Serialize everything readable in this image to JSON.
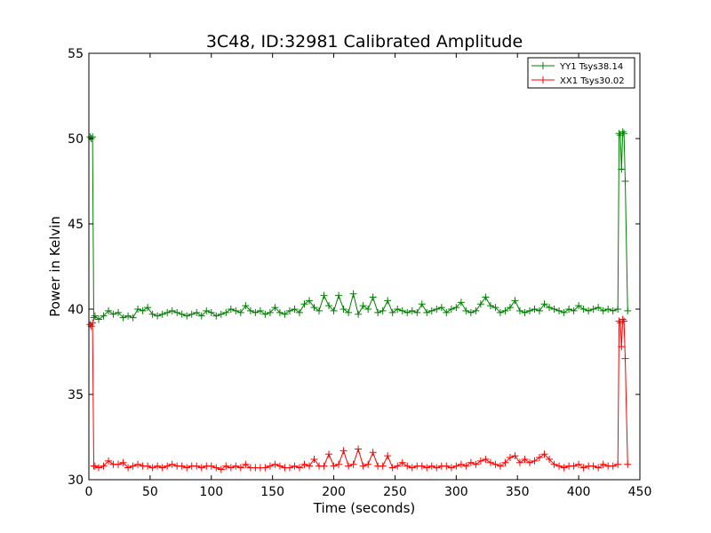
{
  "chart_data": {
    "type": "line",
    "title": "3C48, ID:32981 Calibrated Amplitude",
    "xlabel": "Time (seconds)",
    "ylabel": "Power in Kelvin",
    "xlim": [
      0,
      450
    ],
    "ylim": [
      30,
      55
    ],
    "xticks": [
      0,
      50,
      100,
      150,
      200,
      250,
      300,
      350,
      400,
      450
    ],
    "yticks": [
      30,
      35,
      40,
      45,
      50,
      55
    ],
    "grid": false,
    "legend_position": "top-right",
    "marker": "+",
    "series": [
      {
        "name": "YY1 Tsys38.14",
        "color": "#008000",
        "x": [
          1,
          2,
          3,
          4,
          5,
          8,
          12,
          16,
          20,
          24,
          28,
          32,
          36,
          40,
          44,
          48,
          52,
          56,
          60,
          64,
          68,
          72,
          76,
          80,
          84,
          88,
          92,
          96,
          100,
          104,
          108,
          112,
          116,
          120,
          124,
          128,
          132,
          136,
          140,
          144,
          148,
          152,
          156,
          160,
          164,
          168,
          172,
          176,
          180,
          184,
          188,
          192,
          196,
          200,
          204,
          208,
          212,
          216,
          220,
          224,
          228,
          232,
          236,
          240,
          244,
          248,
          252,
          256,
          260,
          264,
          268,
          272,
          276,
          280,
          284,
          288,
          292,
          296,
          300,
          304,
          308,
          312,
          316,
          320,
          324,
          328,
          332,
          336,
          340,
          344,
          348,
          352,
          356,
          360,
          364,
          368,
          372,
          376,
          380,
          384,
          388,
          392,
          396,
          400,
          404,
          408,
          412,
          416,
          420,
          424,
          428,
          432,
          433,
          434,
          435,
          436,
          437,
          438,
          440
        ],
        "y": [
          50.1,
          50.0,
          50.1,
          39.5,
          39.6,
          39.4,
          39.6,
          39.9,
          39.7,
          39.8,
          39.5,
          39.6,
          39.5,
          40.0,
          39.9,
          40.1,
          39.7,
          39.6,
          39.7,
          39.8,
          39.9,
          39.8,
          39.7,
          39.6,
          39.7,
          39.8,
          39.6,
          39.9,
          39.8,
          39.6,
          39.7,
          39.8,
          40.0,
          39.9,
          39.8,
          40.2,
          39.9,
          39.8,
          39.9,
          39.7,
          39.8,
          40.1,
          39.8,
          39.7,
          39.9,
          40.0,
          39.8,
          40.3,
          40.5,
          40.1,
          39.9,
          40.8,
          40.2,
          39.9,
          40.8,
          40.0,
          39.8,
          40.9,
          39.7,
          40.2,
          40.0,
          40.7,
          39.8,
          39.9,
          40.5,
          39.8,
          40.0,
          39.9,
          39.8,
          39.9,
          39.8,
          40.3,
          39.8,
          39.9,
          40.0,
          40.1,
          39.8,
          40.0,
          40.1,
          40.4,
          39.9,
          39.8,
          39.9,
          40.3,
          40.7,
          40.2,
          40.1,
          39.8,
          39.9,
          40.1,
          40.5,
          39.9,
          39.8,
          39.9,
          40.0,
          39.9,
          40.3,
          40.1,
          40.0,
          39.9,
          39.8,
          40.0,
          39.9,
          40.2,
          40.0,
          39.9,
          40.0,
          40.1,
          39.9,
          40.0,
          39.9,
          40.0,
          50.3,
          50.2,
          48.2,
          50.4,
          50.3,
          47.5,
          39.9
        ]
      },
      {
        "name": "XX1 Tsys30.02",
        "color": "#ff0000",
        "x": [
          1,
          2,
          3,
          4,
          5,
          8,
          12,
          16,
          20,
          24,
          28,
          32,
          36,
          40,
          44,
          48,
          52,
          56,
          60,
          64,
          68,
          72,
          76,
          80,
          84,
          88,
          92,
          96,
          100,
          104,
          108,
          112,
          116,
          120,
          124,
          128,
          132,
          136,
          140,
          144,
          148,
          152,
          156,
          160,
          164,
          168,
          172,
          176,
          180,
          184,
          188,
          192,
          196,
          200,
          204,
          208,
          212,
          216,
          220,
          224,
          228,
          232,
          236,
          240,
          244,
          248,
          252,
          256,
          260,
          264,
          268,
          272,
          276,
          280,
          284,
          288,
          292,
          296,
          300,
          304,
          308,
          312,
          316,
          320,
          324,
          328,
          332,
          336,
          340,
          344,
          348,
          352,
          356,
          360,
          364,
          368,
          372,
          376,
          380,
          384,
          388,
          392,
          396,
          400,
          404,
          408,
          412,
          416,
          420,
          424,
          428,
          432,
          433,
          434,
          435,
          436,
          437,
          438,
          440
        ],
        "y": [
          39.1,
          39.0,
          39.2,
          30.8,
          30.8,
          30.7,
          30.8,
          31.1,
          30.9,
          30.9,
          31.0,
          30.7,
          30.8,
          30.9,
          30.8,
          30.8,
          30.7,
          30.8,
          30.7,
          30.8,
          30.9,
          30.8,
          30.8,
          30.7,
          30.8,
          30.8,
          30.7,
          30.8,
          30.8,
          30.7,
          30.6,
          30.8,
          30.7,
          30.8,
          30.7,
          30.9,
          30.7,
          30.7,
          30.7,
          30.7,
          30.8,
          30.9,
          30.8,
          30.7,
          30.7,
          30.8,
          30.7,
          30.9,
          30.8,
          31.2,
          30.8,
          30.8,
          31.5,
          30.8,
          30.9,
          31.7,
          30.8,
          30.9,
          31.8,
          30.8,
          30.9,
          31.6,
          30.8,
          30.8,
          31.4,
          30.7,
          30.8,
          31.0,
          30.8,
          30.7,
          30.8,
          30.8,
          30.7,
          30.8,
          30.7,
          30.8,
          30.8,
          30.7,
          30.8,
          30.9,
          30.8,
          31.0,
          30.9,
          31.1,
          31.2,
          31.0,
          30.9,
          30.8,
          31.0,
          31.3,
          31.4,
          31.0,
          31.2,
          31.0,
          31.1,
          31.3,
          31.5,
          31.2,
          30.9,
          30.8,
          30.7,
          30.8,
          30.8,
          30.9,
          30.7,
          30.8,
          30.8,
          30.7,
          30.9,
          30.8,
          30.8,
          30.9,
          39.3,
          39.2,
          37.8,
          39.4,
          39.3,
          37.1,
          30.9
        ]
      }
    ]
  }
}
